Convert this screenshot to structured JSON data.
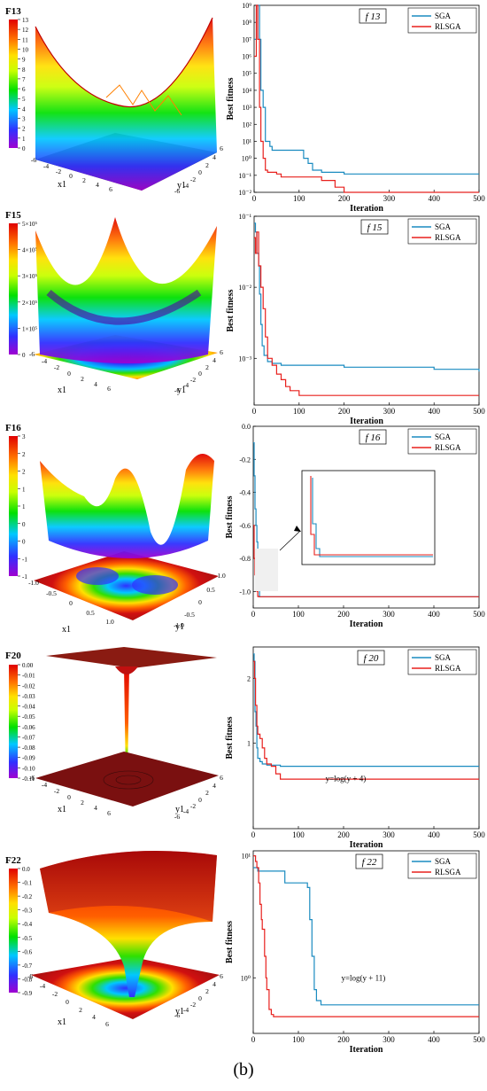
{
  "figure_label": "(b)",
  "colors": {
    "SGA": "#1a8bc0",
    "RLSGA": "#e8201d",
    "surface_floor": "#8a1b12"
  },
  "chart_data": [
    {
      "type": "surface3d",
      "name": "F13",
      "title": "F13",
      "xlabel": "x1",
      "ylabel": "y1",
      "x_ticks": [
        "-6",
        "-4",
        "-2",
        "0",
        "2",
        "4",
        "6"
      ],
      "y_ticks": [
        "6",
        "4",
        "2",
        "0",
        "-2",
        "-4",
        "-6"
      ],
      "colorbar_ticks": [
        "13",
        "12",
        "11",
        "10",
        "9",
        "8",
        "7",
        "6",
        "5",
        "4",
        "3",
        "2",
        "1",
        "0"
      ],
      "colorbar_range": [
        0,
        13
      ]
    },
    {
      "type": "line",
      "title": "f 13",
      "xlabel": "Iteration",
      "ylabel": "Best fitness",
      "yscale": "log",
      "xlim": [
        0,
        500
      ],
      "ylim": [
        0.01,
        1000000000
      ],
      "x_ticks": [
        "0",
        "100",
        "200",
        "300",
        "400",
        "500"
      ],
      "y_ticks": [
        "10⁹",
        "10⁸",
        "10⁷",
        "10⁶",
        "10⁵",
        "10⁴",
        "10³",
        "10²",
        "10¹",
        "10⁰",
        "10⁻¹",
        "10⁻²"
      ],
      "legend_position": "top-right",
      "series": [
        {
          "name": "SGA",
          "x": [
            0,
            5,
            8,
            12,
            15,
            20,
            25,
            30,
            35,
            40,
            60,
            80,
            100,
            110,
            120,
            130,
            150,
            200,
            300,
            500
          ],
          "y": [
            10000000,
            1000000000,
            1000000000,
            10000000,
            10000,
            1000,
            10,
            10,
            5,
            3,
            3,
            3,
            3,
            1,
            0.5,
            0.2,
            0.15,
            0.12,
            0.12,
            0.12
          ]
        },
        {
          "name": "RLSGA",
          "x": [
            0,
            5,
            8,
            12,
            15,
            20,
            25,
            30,
            50,
            60,
            100,
            150,
            180,
            200,
            300,
            500
          ],
          "y": [
            1000000,
            1000000000,
            10000000,
            1000,
            10,
            1,
            0.2,
            0.15,
            0.12,
            0.08,
            0.08,
            0.05,
            0.02,
            0.01,
            0.01,
            0.01
          ]
        }
      ]
    },
    {
      "type": "surface3d",
      "name": "F15",
      "title": "F15",
      "xlabel": "x1",
      "ylabel": "y1",
      "x_ticks": [
        "-6",
        "-4",
        "-2",
        "0",
        "2",
        "4",
        "6"
      ],
      "y_ticks": [
        "6",
        "4",
        "2",
        "0",
        "-2",
        "-4",
        "-6"
      ],
      "colorbar_ticks": [
        "5×10⁵",
        "4×10⁵",
        "3×10⁵",
        "2×10⁵",
        "1×10⁵",
        "0"
      ],
      "colorbar_range": [
        0,
        500000
      ]
    },
    {
      "type": "line",
      "title": "f 15",
      "xlabel": "Iteration",
      "ylabel": "Best fitness",
      "yscale": "log",
      "xlim": [
        0,
        500
      ],
      "ylim": [
        0.00022,
        0.1
      ],
      "x_ticks": [
        "0",
        "100",
        "200",
        "300",
        "400",
        "500"
      ],
      "y_ticks": [
        "10⁻¹",
        "10⁻²",
        "10⁻³"
      ],
      "legend_position": "top-right",
      "series": [
        {
          "name": "SGA",
          "x": [
            0,
            3,
            6,
            10,
            12,
            15,
            18,
            22,
            30,
            40,
            60,
            100,
            200,
            300,
            400,
            500
          ],
          "y": [
            0.08,
            0.06,
            0.03,
            0.02,
            0.008,
            0.003,
            0.0015,
            0.0011,
            0.0009,
            0.00085,
            0.0008,
            0.0008,
            0.00075,
            0.00075,
            0.0007,
            0.00065
          ]
        },
        {
          "name": "RLSGA",
          "x": [
            0,
            3,
            6,
            10,
            15,
            20,
            25,
            30,
            40,
            50,
            60,
            70,
            80,
            100,
            200,
            300,
            500
          ],
          "y": [
            0.05,
            0.03,
            0.06,
            0.02,
            0.01,
            0.005,
            0.002,
            0.001,
            0.0008,
            0.0006,
            0.0005,
            0.0004,
            0.00035,
            0.0003,
            0.0003,
            0.0003,
            0.0003
          ]
        }
      ]
    },
    {
      "type": "surface3d",
      "name": "F16",
      "title": "F16",
      "xlabel": "x1",
      "ylabel": "y1",
      "x_ticks": [
        "-1.0",
        "-0.5",
        "0",
        "0.5",
        "1.0"
      ],
      "y_ticks": [
        "1.0",
        "0.5",
        "0",
        "-0.5",
        "-1.0"
      ],
      "colorbar_ticks": [
        "3",
        "2",
        "2",
        "1",
        "1",
        "0",
        "0",
        "-1",
        "-1"
      ],
      "colorbar_range": [
        -1,
        3
      ]
    },
    {
      "type": "line",
      "title": "f 16",
      "xlabel": "Iteration",
      "ylabel": "Best fitness",
      "yscale": "linear",
      "xlim": [
        0,
        500
      ],
      "ylim": [
        -1.1,
        0.0
      ],
      "x_ticks": [
        "0",
        "100",
        "200",
        "300",
        "400",
        "500"
      ],
      "y_ticks": [
        "0.0",
        "-0.2",
        "-0.4",
        "-0.6",
        "-0.8",
        "-1.0"
      ],
      "legend_position": "top-right",
      "series": [
        {
          "name": "SGA",
          "x": [
            0,
            2,
            4,
            6,
            8,
            10,
            12,
            14,
            20,
            500
          ],
          "y": [
            -0.1,
            -0.3,
            -0.5,
            -0.6,
            -0.7,
            -0.85,
            -0.95,
            -1.0316,
            -1.0316,
            -1.0316
          ]
        },
        {
          "name": "RLSGA",
          "x": [
            0,
            2,
            4,
            6,
            8,
            10,
            12,
            500
          ],
          "y": [
            -0.6,
            -0.8,
            -0.9,
            -0.95,
            -1.0,
            -1.03,
            -1.0316,
            -1.0316
          ]
        }
      ]
    },
    {
      "type": "surface3d",
      "name": "F20",
      "title": "F20",
      "xlabel": "x1",
      "ylabel": "y1",
      "x_ticks": [
        "-6",
        "-4",
        "-2",
        "0",
        "2",
        "4",
        "6"
      ],
      "y_ticks": [
        "6",
        "4",
        "2",
        "0",
        "-2",
        "-4",
        "-6"
      ],
      "colorbar_ticks": [
        "0.00",
        "-0.01",
        "-0.02",
        "-0.03",
        "-0.04",
        "-0.05",
        "-0.06",
        "-0.07",
        "-0.08",
        "-0.09",
        "-0.10",
        "-0.11"
      ],
      "colorbar_range": [
        -0.11,
        0.0
      ]
    },
    {
      "type": "line",
      "title": "f 20",
      "xlabel": "Iteration",
      "ylabel": "Best fitness",
      "yscale": "log",
      "xlim": [
        0,
        500
      ],
      "ylim": [
        0.4,
        2.8
      ],
      "x_ticks": [
        "0",
        "100",
        "200",
        "300",
        "400",
        "500"
      ],
      "y_ticks": [
        "2",
        "1"
      ],
      "legend_position": "top-right",
      "annotations": [
        "y=log(y + 4)"
      ],
      "series": [
        {
          "name": "SGA",
          "x": [
            0,
            2,
            4,
            6,
            8,
            10,
            15,
            20,
            30,
            60,
            100,
            500
          ],
          "y": [
            2.6,
            2.4,
            1.4,
            1.2,
            0.95,
            0.85,
            0.82,
            0.8,
            0.79,
            0.78,
            0.78,
            0.78
          ]
        },
        {
          "name": "RLSGA",
          "x": [
            0,
            3,
            5,
            8,
            10,
            15,
            20,
            25,
            30,
            40,
            50,
            60,
            100,
            500
          ],
          "y": [
            2.4,
            2.0,
            1.5,
            1.2,
            1.1,
            1.05,
            0.95,
            0.85,
            0.8,
            0.78,
            0.72,
            0.68,
            0.68,
            0.68
          ]
        }
      ]
    },
    {
      "type": "surface3d",
      "name": "F22",
      "title": "F22",
      "xlabel": "x1",
      "ylabel": "y1",
      "x_ticks": [
        "-6",
        "-4",
        "-2",
        "0",
        "2",
        "4",
        "6"
      ],
      "y_ticks": [
        "6",
        "4",
        "2",
        "0",
        "-2",
        "-4",
        "-6"
      ],
      "colorbar_ticks": [
        "0.0",
        "-0.1",
        "-0.2",
        "-0.3",
        "-0.4",
        "-0.5",
        "-0.6",
        "-0.7",
        "-0.8",
        "-0.9"
      ],
      "colorbar_range": [
        -0.9,
        0.0
      ]
    },
    {
      "type": "line",
      "title": "f 22",
      "xlabel": "Iteration",
      "ylabel": "Best fitness",
      "yscale": "log",
      "xlim": [
        0,
        500
      ],
      "ylim": [
        0.35,
        11
      ],
      "x_ticks": [
        "0",
        "100",
        "200",
        "300",
        "400",
        "500"
      ],
      "y_ticks": [
        "10¹",
        "10⁰"
      ],
      "legend_position": "top-right",
      "annotations": [
        "y=log(y + 11)"
      ],
      "series": [
        {
          "name": "SGA",
          "x": [
            0,
            5,
            10,
            60,
            70,
            100,
            120,
            125,
            130,
            135,
            140,
            150,
            200,
            300,
            500
          ],
          "y": [
            8,
            8,
            7.5,
            7.5,
            6,
            6,
            5.5,
            3,
            1.5,
            0.8,
            0.65,
            0.6,
            0.6,
            0.6,
            0.6
          ]
        },
        {
          "name": "RLSGA",
          "x": [
            0,
            5,
            8,
            12,
            15,
            18,
            20,
            25,
            28,
            30,
            35,
            40,
            45,
            100,
            500
          ],
          "y": [
            10,
            9,
            8,
            6,
            4,
            3,
            2.5,
            1.5,
            1,
            0.8,
            0.55,
            0.5,
            0.48,
            0.48,
            0.48
          ]
        }
      ]
    }
  ]
}
